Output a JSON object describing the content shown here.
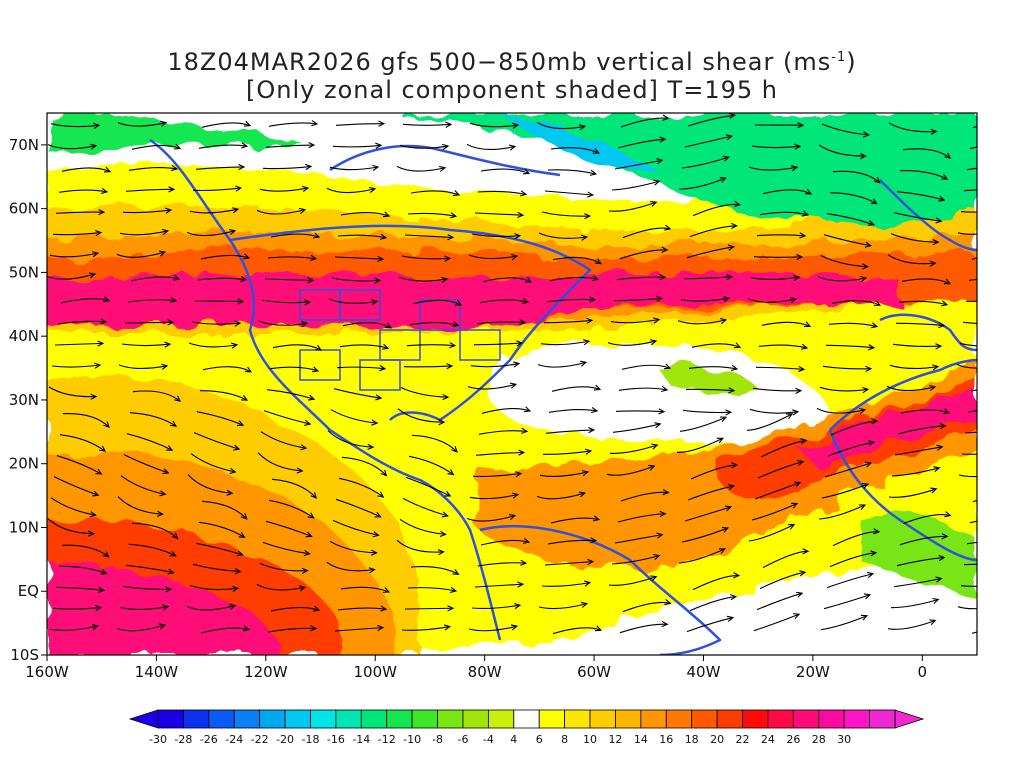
{
  "title": {
    "line1_prefix": "18Z04MAR2026 gfs 500−850mb vertical shear (ms",
    "line1_sup": "-1",
    "line1_suffix": ")",
    "line2": "[Only zonal component shaded] T=195 h"
  },
  "map": {
    "lon_range": [
      -160,
      10
    ],
    "lat_range": [
      -10,
      75
    ],
    "x_ticks": [
      {
        "lon": -160,
        "label": "160W"
      },
      {
        "lon": -140,
        "label": "140W"
      },
      {
        "lon": -120,
        "label": "120W"
      },
      {
        "lon": -100,
        "label": "100W"
      },
      {
        "lon": -80,
        "label": "80W"
      },
      {
        "lon": -60,
        "label": "60W"
      },
      {
        "lon": -40,
        "label": "40W"
      },
      {
        "lon": -20,
        "label": "20W"
      },
      {
        "lon": 0,
        "label": "0"
      }
    ],
    "y_ticks": [
      {
        "lat": 70,
        "label": "70N"
      },
      {
        "lat": 60,
        "label": "60N"
      },
      {
        "lat": 50,
        "label": "50N"
      },
      {
        "lat": 40,
        "label": "40N"
      },
      {
        "lat": 30,
        "label": "30N"
      },
      {
        "lat": 20,
        "label": "20N"
      },
      {
        "lat": 10,
        "label": "10N"
      },
      {
        "lat": 0,
        "label": "EQ"
      },
      {
        "lat": -10,
        "label": "10S"
      }
    ],
    "coastline_color": "#3050e0",
    "streamline_color": "#000000"
  },
  "colorbar": {
    "levels": [
      "-30",
      "-28",
      "-26",
      "-24",
      "-22",
      "-20",
      "-18",
      "-16",
      "-14",
      "-12",
      "-10",
      "-8",
      "-6",
      "-4",
      "4",
      "6",
      "8",
      "10",
      "12",
      "14",
      "16",
      "18",
      "20",
      "22",
      "24",
      "26",
      "28",
      "30"
    ],
    "colors": [
      "#1a00e6",
      "#0a32f0",
      "#0a5af5",
      "#0a80f5",
      "#00a8f0",
      "#00c8f0",
      "#00e6e6",
      "#00e6b4",
      "#00e678",
      "#14e650",
      "#3ce628",
      "#78e614",
      "#a0e60a",
      "#c8f00a",
      "#ffffff",
      "#ffff00",
      "#ffe600",
      "#ffcc00",
      "#ffb400",
      "#ff9600",
      "#ff7800",
      "#ff5a00",
      "#ff3c00",
      "#ff0a0a",
      "#ff0a46",
      "#ff0a78",
      "#ff0aa0",
      "#ff14c8",
      "#f028d2"
    ],
    "low_color": "#1a00e6",
    "high_color": "#f028d2"
  }
}
